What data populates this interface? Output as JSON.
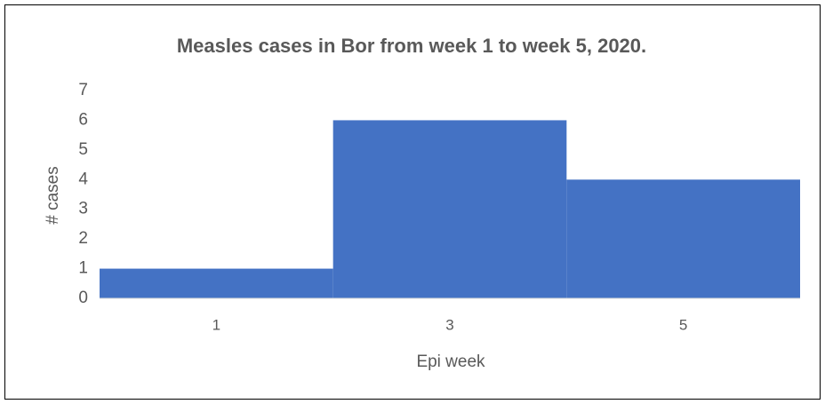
{
  "chart_data": {
    "type": "bar",
    "title": "Measles cases in Bor from week 1 to week 5, 2020.",
    "x_label": "Epi week",
    "y_label": "# cases",
    "categories": [
      "1",
      "3",
      "5"
    ],
    "values": [
      1,
      6,
      4
    ],
    "color": "#4472c4",
    "ylim": [
      0,
      7
    ],
    "yticks": [
      0,
      1,
      2,
      3,
      4,
      5,
      6,
      7
    ],
    "grid": false
  }
}
